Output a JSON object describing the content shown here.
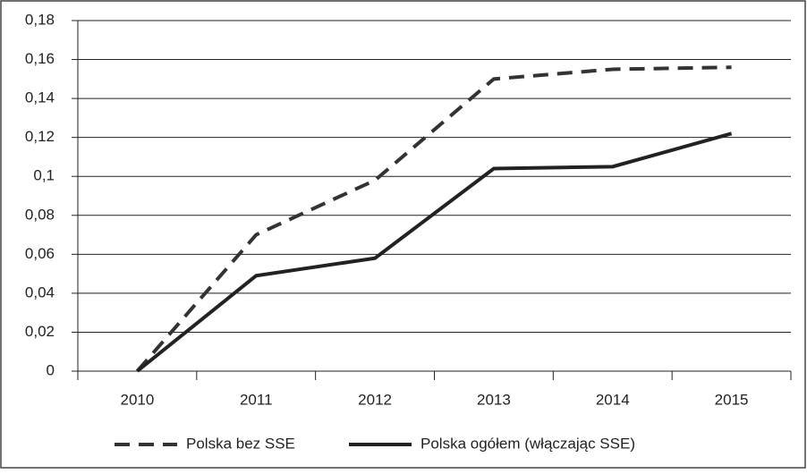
{
  "chart_data": {
    "type": "line",
    "categories": [
      "2010",
      "2011",
      "2012",
      "2013",
      "2014",
      "2015"
    ],
    "series": [
      {
        "name": "Polska bez SSE",
        "color": "#333333",
        "dash": true,
        "values": [
          0,
          0.07,
          0.098,
          0.15,
          0.155,
          0.156
        ]
      },
      {
        "name": "Polska ogółem (włączając SSE)",
        "color": "#222222",
        "dash": false,
        "values": [
          0,
          0.049,
          0.058,
          0.104,
          0.105,
          0.122
        ]
      }
    ],
    "ylim": [
      0,
      0.18
    ],
    "yticks": [
      0,
      {
        "value": 0.02,
        "label": "0,02"
      },
      {
        "value": 0.04,
        "label": "0,04"
      },
      {
        "value": 0.06,
        "label": "0,06"
      },
      {
        "value": 0.08,
        "label": "0,08"
      },
      {
        "value": 0.1,
        "label": "0,1"
      },
      {
        "value": 0.12,
        "label": "0,12"
      },
      {
        "value": 0.14,
        "label": "0,14"
      },
      {
        "value": 0.16,
        "label": "0,16"
      },
      {
        "value": 0.18,
        "label": "0,18"
      }
    ],
    "grid": true,
    "legend": "bottom"
  }
}
